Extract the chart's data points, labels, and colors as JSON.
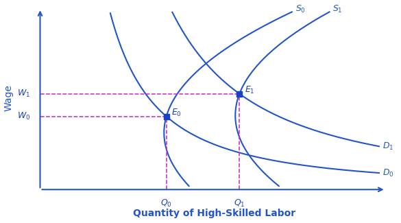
{
  "title": "",
  "xlabel": "Quantity of High-Skilled Labor",
  "ylabel": "Wage",
  "xlabel_fontsize": 10,
  "ylabel_fontsize": 10,
  "curve_color": "#2255cc",
  "dashed_color": "#cc22cc",
  "eq_color": "#1a3fcc",
  "bg_color": "#ffffff",
  "x_eq0": 3.8,
  "y_eq0": 4.2,
  "x_eq1": 6.0,
  "y_eq1": 5.5,
  "xlim": [
    0,
    10.5
  ],
  "ylim": [
    0,
    10.5
  ]
}
